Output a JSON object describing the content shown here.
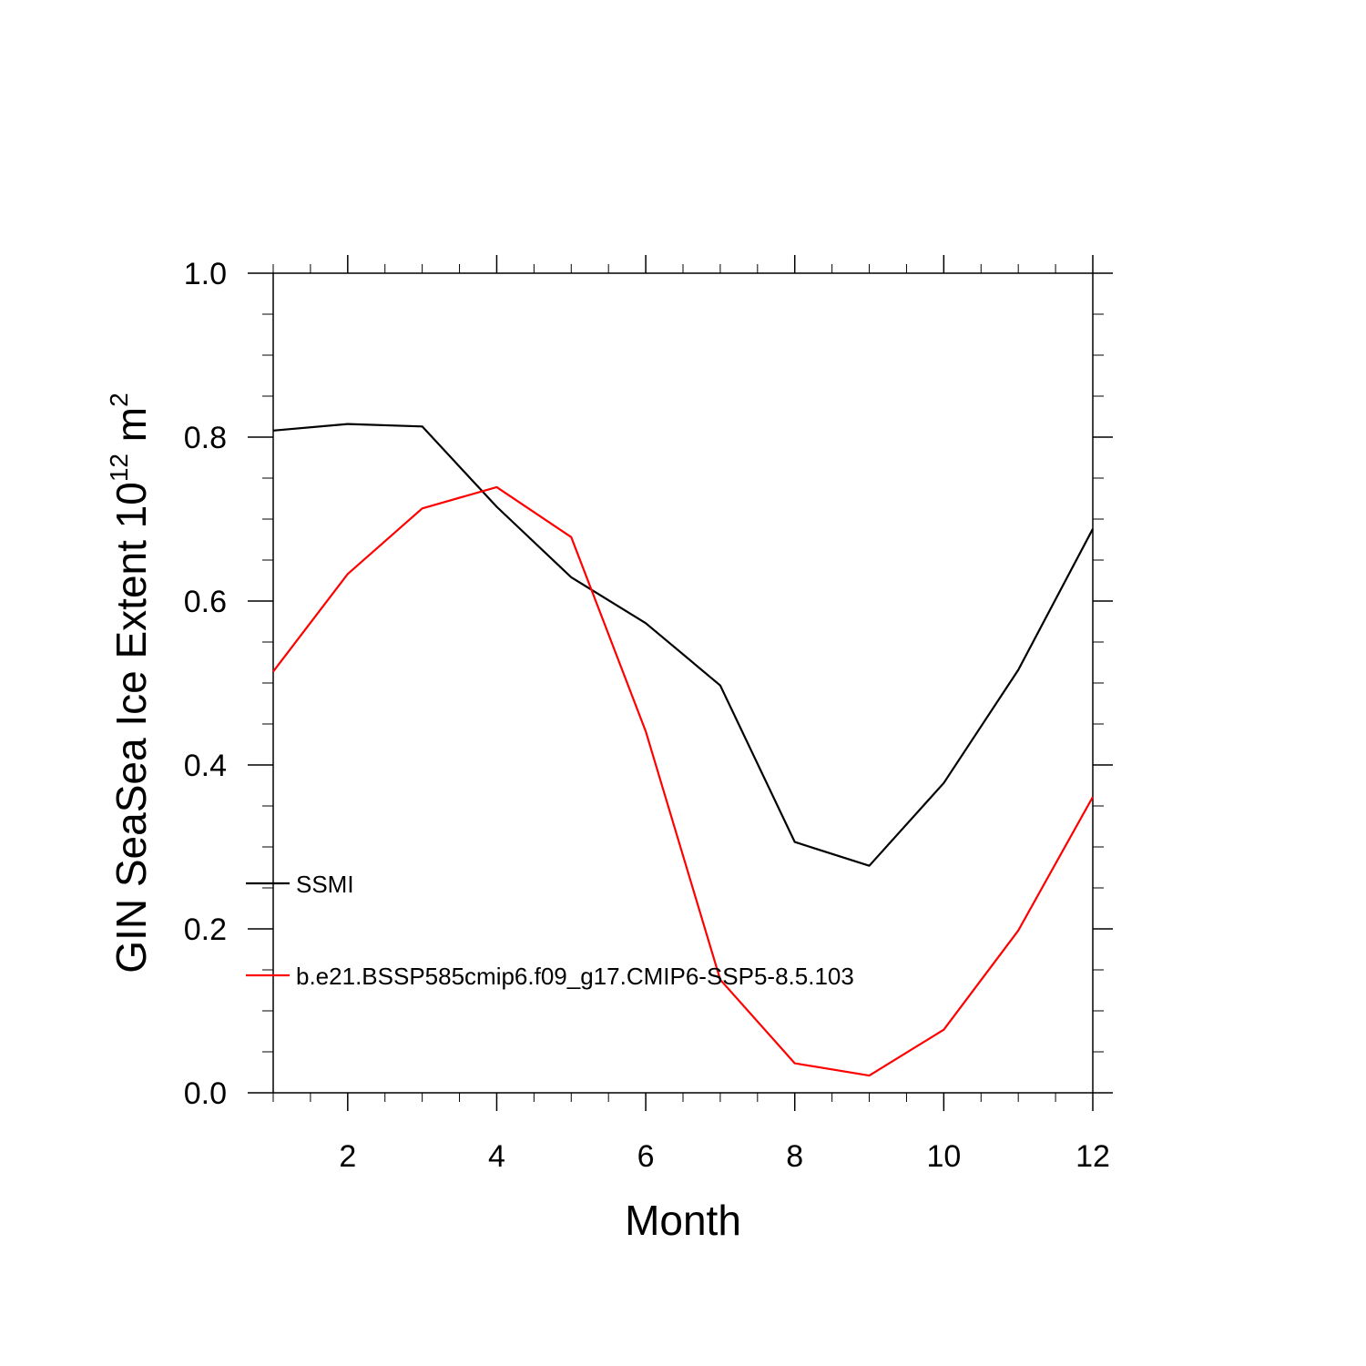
{
  "chart_data": {
    "type": "line",
    "xlabel": "Month",
    "ylabel": {
      "prefix": "GIN SeaSea Ice Extent 10",
      "sup1": "12",
      "mid": " m",
      "sup2": "2"
    },
    "xlim": [
      1,
      12
    ],
    "ylim": [
      0.0,
      1.0
    ],
    "x_ticks": [
      2,
      4,
      6,
      8,
      10,
      12
    ],
    "x_tick_labels": [
      "2",
      "4",
      "6",
      "8",
      "10",
      "12"
    ],
    "y_ticks": [
      0.0,
      0.2,
      0.4,
      0.6,
      0.8,
      1.0
    ],
    "y_tick_labels": [
      "0.0",
      "0.2",
      "0.4",
      "0.6",
      "0.8",
      "1.0"
    ],
    "grid": false,
    "legend_position": "left-lower",
    "x": [
      1,
      2,
      3,
      4,
      5,
      6,
      7,
      8,
      9,
      10,
      11,
      12
    ],
    "series": [
      {
        "name": "SSMI",
        "color": "#000000",
        "values": [
          0.808,
          0.816,
          0.813,
          0.715,
          0.629,
          0.573,
          0.497,
          0.306,
          0.277,
          0.378,
          0.516,
          0.688
        ]
      },
      {
        "name": "b.e21.BSSP585cmip6.f09_g17.CMIP6-SSP5-8.5.103",
        "color": "#ff0000",
        "values": [
          0.514,
          0.633,
          0.713,
          0.739,
          0.678,
          0.441,
          0.138,
          0.036,
          0.021,
          0.077,
          0.198,
          0.361
        ]
      }
    ]
  }
}
